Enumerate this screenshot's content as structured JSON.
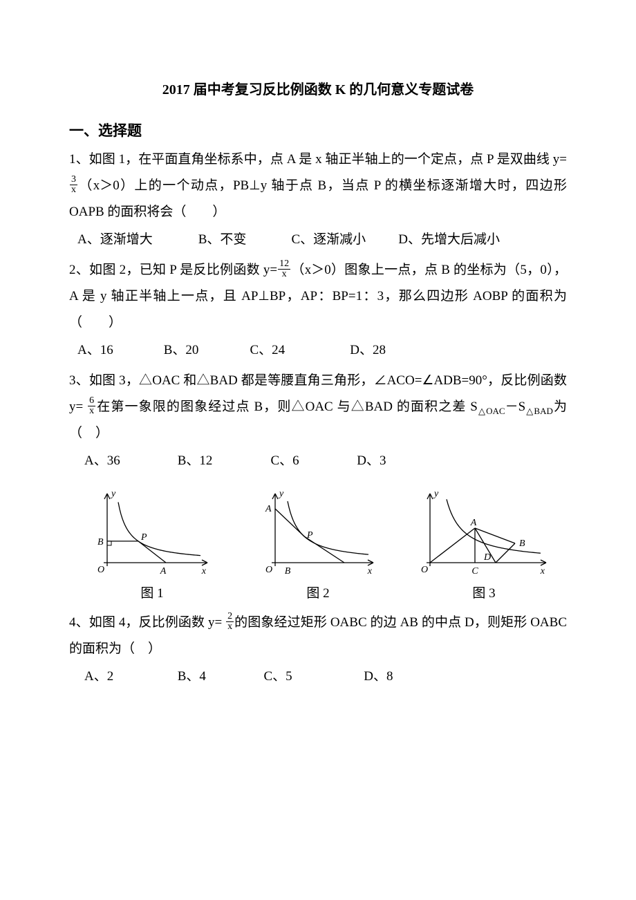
{
  "title": "2017 届中考复习反比例函数 K 的几何意义专题试卷",
  "section": "一、选择题",
  "q1": {
    "text_a": "1、如图 1，在平面直角坐标系中，点 A 是 x 轴正半轴上的一个定点，点 P 是双曲线 y=",
    "frac_num": "3",
    "frac_den": "x",
    "text_b": "（x＞0）上的一个动点，PB⊥y 轴于点 B，当点 P 的横坐标逐渐增大时，四边形 OAPB 的面积将会（　　）",
    "A": "A、逐渐增大",
    "B": "B、不变",
    "C": "C、逐渐减小",
    "D": "D、先增大后减小"
  },
  "q2": {
    "text_a": "2、如图 2，已知 P 是反比例函数 y=",
    "frac_num": "12",
    "frac_den": "x",
    "text_b": "（x＞0）图象上一点，点 B 的坐标为（5，0），A 是 y 轴正半轴上一点，且 AP⊥BP，AP：BP=1：3，那么四边形 AOBP 的面积为（　　）",
    "A": "A、16",
    "B": "B、20",
    "C": "C、24",
    "D": "D、28"
  },
  "q3": {
    "text_a": "3、如图 3，△OAC 和△BAD 都是等腰直角三角形，∠ACO=∠ADB=90°，反比例函数 y= ",
    "frac_num": "6",
    "frac_den": "x",
    "text_b": "在第一象限的图象经过点 B，则△OAC 与△BAD 的面积之差 S",
    "sub1": "△OAC",
    "mid": "－S",
    "sub2": "△BAD",
    "tail": "为（　）",
    "A": "A、36",
    "B": "B、12",
    "C": "C、6",
    "D": "D、3"
  },
  "figs": {
    "f1": "图 1",
    "f2": "图 2",
    "f3": "图 3"
  },
  "q4": {
    "text_a": "4、如图 4，反比例函数 y= ",
    "frac_num": "2",
    "frac_den": "x",
    "text_b": "的图象经过矩形 OABC 的边 AB 的中点 D，则矩形 OABC 的面积为（　）",
    "A": "A、2",
    "B": "B、4",
    "C": "C、5",
    "D": "D、8"
  },
  "style": {
    "axis_stroke": "#000000",
    "curve_stroke": "#000000",
    "stroke_width": 1.3,
    "fig_width": 180,
    "fig_height": 130,
    "label_font": "italic 14px Times New Roman, serif"
  }
}
